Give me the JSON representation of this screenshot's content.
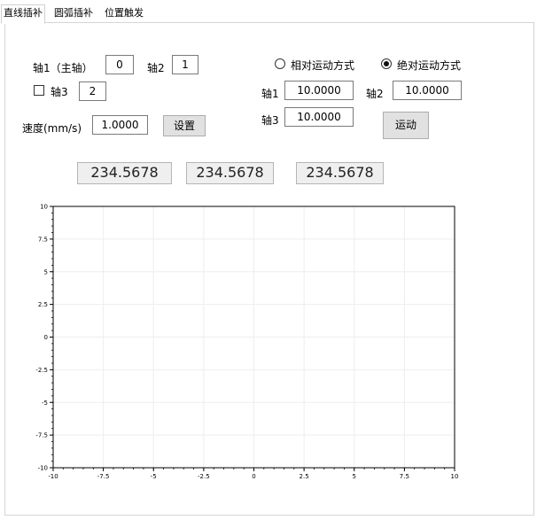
{
  "tabs": [
    {
      "label": "直线插补",
      "active": true
    },
    {
      "label": "圆弧插补",
      "active": false
    },
    {
      "label": "位置触发",
      "active": false
    }
  ],
  "axis_selection": {
    "axis1_label": "轴1（主轴）",
    "axis1_value": "0",
    "axis2_label": "轴2",
    "axis2_value": "1",
    "axis3_checkbox_label": "轴3",
    "axis3_checked": false,
    "axis3_value": "2"
  },
  "speed": {
    "label": "速度(mm/s)",
    "value": "1.0000",
    "set_button": "设置"
  },
  "motion_mode": {
    "relative_label": "相对运动方式",
    "absolute_label": "绝对运动方式",
    "selected": "absolute"
  },
  "targets": {
    "axis1_label": "轴1",
    "axis1_value": "10.0000",
    "axis2_label": "轴2",
    "axis2_value": "10.0000",
    "axis3_label": "轴3",
    "axis3_value": "10.0000",
    "move_button": "运动"
  },
  "position_displays": [
    "234.5678",
    "234.5678",
    "234.5678"
  ],
  "chart_data": {
    "type": "scatter",
    "title": "",
    "xlabel": "",
    "ylabel": "",
    "xlim": [
      -10,
      10
    ],
    "ylim": [
      -10,
      10
    ],
    "x_ticks": [
      "-10",
      "-7.5",
      "-5",
      "-2.5",
      "0",
      "2.5",
      "5",
      "7.5",
      "10"
    ],
    "y_ticks": [
      "10",
      "7.5",
      "5",
      "2.5",
      "0",
      "-2.5",
      "-5",
      "-7.5",
      "-10"
    ],
    "grid": true,
    "series": []
  }
}
